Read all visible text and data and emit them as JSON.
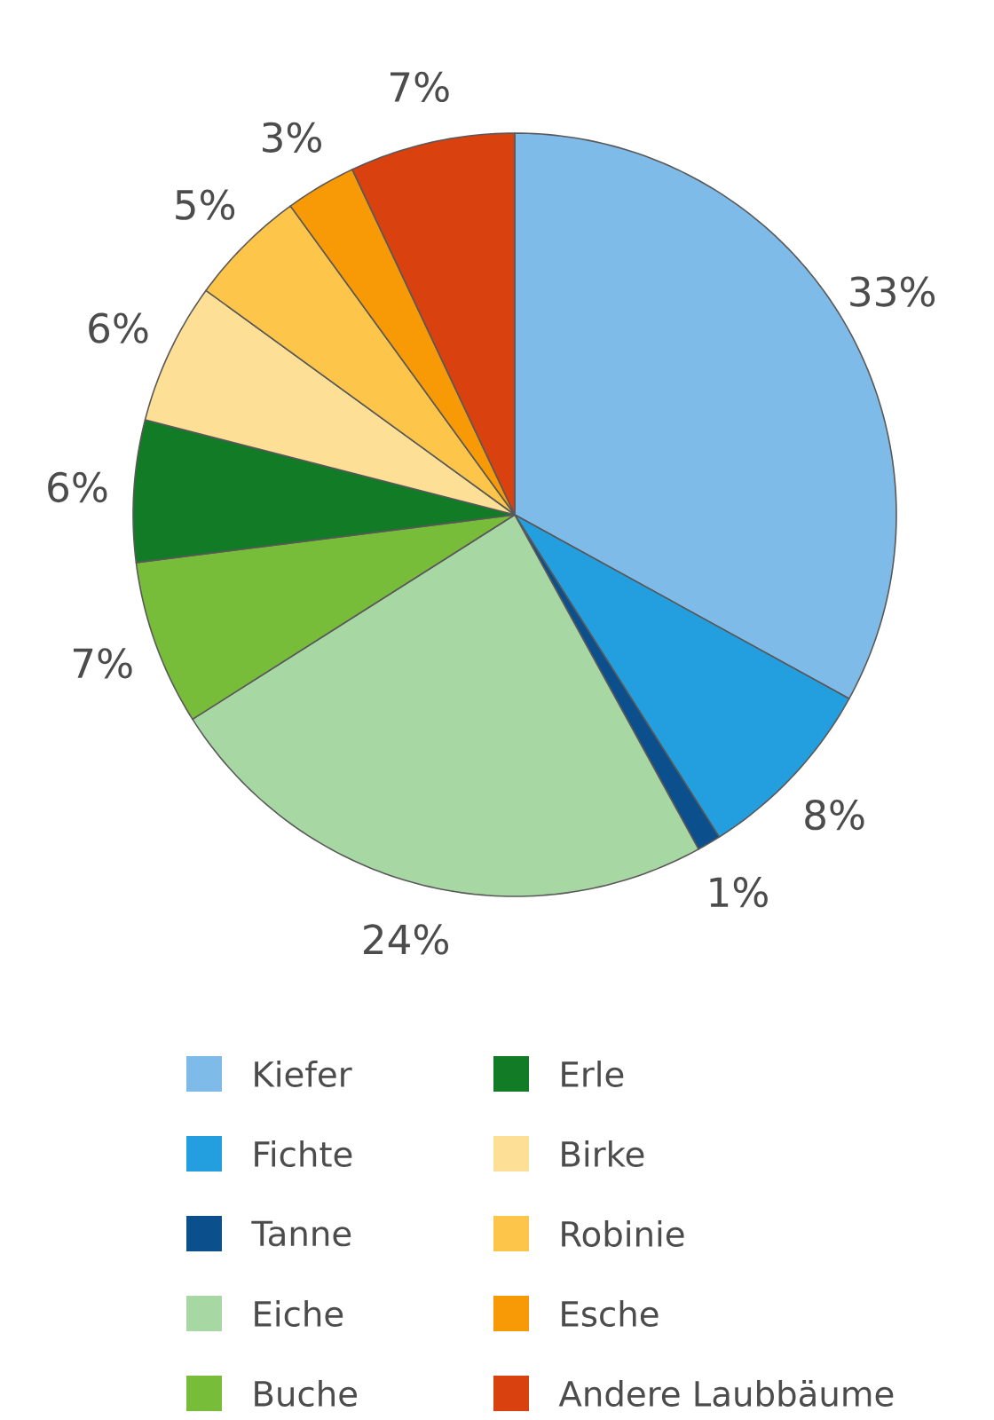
{
  "chart_data": {
    "type": "pie",
    "categories": [
      "Kiefer",
      "Fichte",
      "Tanne",
      "Eiche",
      "Buche",
      "Erle",
      "Birke",
      "Robinie",
      "Esche",
      "Andere Laubbäume"
    ],
    "values": [
      33,
      8,
      1,
      24,
      7,
      6,
      6,
      5,
      3,
      7
    ],
    "value_labels": [
      "33%",
      "8%",
      "1%",
      "24%",
      "7%",
      "6%",
      "6%",
      "5%",
      "3%",
      "7%"
    ],
    "colors": [
      "#7fbbe8",
      "#239fdf",
      "#0b4f8c",
      "#a7d7a3",
      "#78bd3a",
      "#127b26",
      "#fedf96",
      "#fdc64a",
      "#f89a05",
      "#d9410f"
    ],
    "legend": "bottom"
  }
}
